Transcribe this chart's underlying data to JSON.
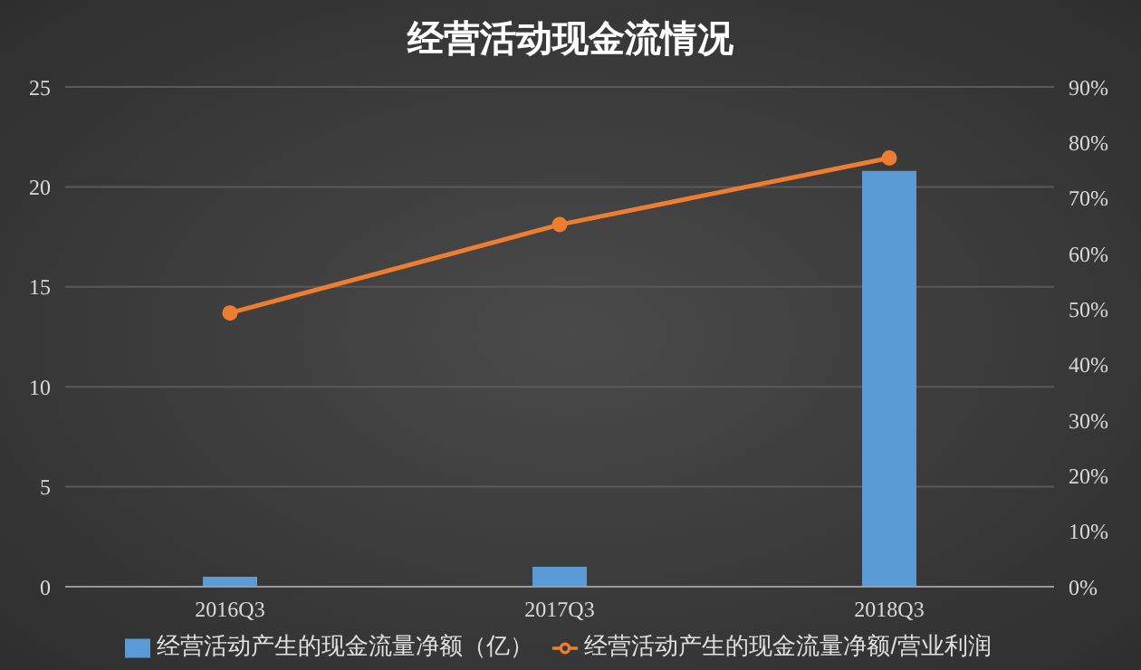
{
  "chart_data": {
    "type": "bar",
    "title": "经营活动现金流情况",
    "categories": [
      "2016Q3",
      "2017Q3",
      "2018Q3"
    ],
    "series": [
      {
        "name": "经营活动产生的现金流量净额（亿）",
        "color": "#5b9bd5",
        "values": [
          0.5,
          1.0,
          20.8
        ]
      },
      {
        "name": "经营活动产生的现金流量净额/营业利润",
        "type": "line",
        "axis": "y2",
        "color": "#ed7d31",
        "values": [
          49.3,
          65.2,
          77.2
        ]
      }
    ],
    "ylim": [
      0,
      25
    ],
    "yticks": [
      0,
      5,
      10,
      15,
      20,
      25
    ],
    "y2lim": [
      0,
      90
    ],
    "y2ticks": [
      {
        "value": 0,
        "label": "0%"
      },
      {
        "value": 10,
        "label": "10%"
      },
      {
        "value": 20,
        "label": "20%"
      },
      {
        "value": 30,
        "label": "30%"
      },
      {
        "value": 40,
        "label": "40%"
      },
      {
        "value": 50,
        "label": "50%"
      },
      {
        "value": 60,
        "label": "60%"
      },
      {
        "value": 70,
        "label": "70%"
      },
      {
        "value": 80,
        "label": "80%"
      },
      {
        "value": 90,
        "label": "90%"
      }
    ],
    "grid": "y",
    "legend": "bottom",
    "marker": "circle"
  }
}
